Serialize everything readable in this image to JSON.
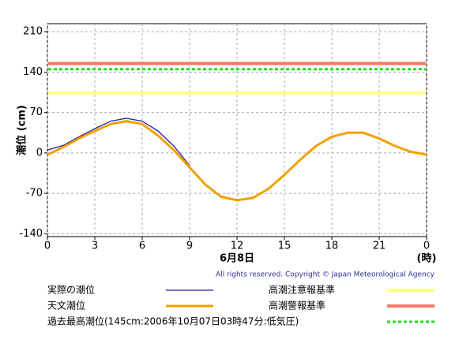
{
  "chart_data": {
    "type": "line",
    "ylabel": "潮位 (cm)",
    "xlabel": "6月8日",
    "xunit": "(時)",
    "copyright": "All rights reserved. Copyright © Japan Meteorological Agency",
    "x": [
      0,
      1,
      2,
      3,
      4,
      5,
      6,
      7,
      8,
      9,
      10,
      11,
      12,
      13,
      14,
      15,
      16,
      17,
      18,
      19,
      20,
      21,
      22,
      23,
      24
    ],
    "series": [
      {
        "name": "実際の潮位",
        "color": "#2020a0",
        "width": 1.3,
        "values": [
          5,
          13,
          28,
          42,
          55,
          60,
          55,
          38,
          12,
          -22,
          null,
          null,
          null,
          null,
          null,
          null,
          null,
          null,
          null,
          null,
          null,
          null,
          null,
          null,
          null
        ]
      },
      {
        "name": "天文潮位",
        "color": "#f5a000",
        "width": 3,
        "values": [
          -3,
          10,
          25,
          38,
          50,
          55,
          50,
          30,
          5,
          -25,
          -55,
          -76,
          -82,
          -78,
          -62,
          -38,
          -12,
          12,
          28,
          35,
          35,
          25,
          12,
          2,
          -3
        ]
      }
    ],
    "thresholds": [
      {
        "name": "高潮注意報基準",
        "value": 104,
        "color": "#ffff88",
        "style": "solid"
      },
      {
        "name": "高潮警報基準",
        "value": 155,
        "color": "#f87868",
        "style": "solid"
      },
      {
        "name": "過去最高潮位(145cm:2006年10月07日03時47分:低気圧)",
        "value": 145,
        "color": "#22dd22",
        "style": "dotted"
      }
    ],
    "xlim": [
      0,
      24
    ],
    "xticks": [
      0,
      3,
      6,
      9,
      12,
      15,
      18,
      21,
      {
        "value": 24,
        "label": "0"
      }
    ],
    "ylim": [
      -145,
      224
    ],
    "yticks": [
      -140,
      -70,
      0,
      70,
      140,
      210
    ],
    "grid": true
  }
}
